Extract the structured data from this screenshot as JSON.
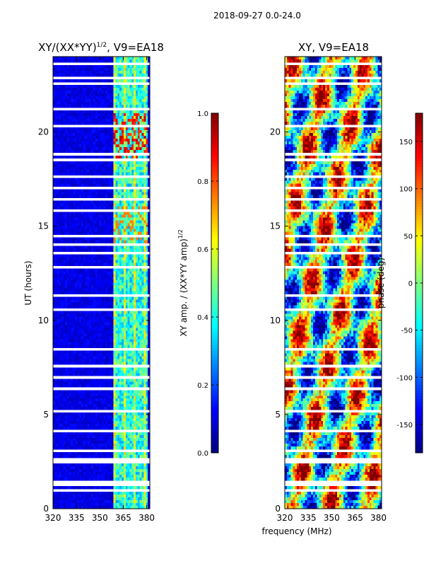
{
  "suptitle": "2018-09-27 0.0-24.0",
  "chart_data": [
    {
      "type": "heatmap",
      "title": "XY/(XX*YY)",
      "title_exp": "1/2",
      "title_suffix": ", V9=EA18",
      "xlabel": "",
      "ylabel": "UT (hours)",
      "xlim": [
        320,
        382
      ],
      "ylim": [
        0,
        24
      ],
      "xticks": [
        "320",
        "335",
        "350",
        "365",
        "380"
      ],
      "yticks": [
        "0",
        "5",
        "10",
        "15",
        "20"
      ],
      "colorbar": {
        "label": "XY amp. / (XX*YY amp)",
        "label_exp": "1/2",
        "range": [
          0.0,
          1.0
        ],
        "ticks": [
          "0.0",
          "0.2",
          "0.4",
          "0.6",
          "0.8",
          "1.0"
        ]
      }
    },
    {
      "type": "heatmap",
      "title": "XY, V9=EA18",
      "xlabel": "frequency (MHz)",
      "ylabel": "",
      "xlim": [
        320,
        382
      ],
      "ylim": [
        0,
        24
      ],
      "xticks": [
        "320",
        "335",
        "350",
        "365",
        "380"
      ],
      "yticks": [
        "0",
        "5",
        "10",
        "15",
        "20"
      ],
      "colorbar": {
        "label": "phase (deg)",
        "range": [
          -180,
          180
        ],
        "ticks": [
          "-150",
          "-100",
          "-50",
          "0",
          "50",
          "100",
          "150"
        ]
      }
    }
  ]
}
